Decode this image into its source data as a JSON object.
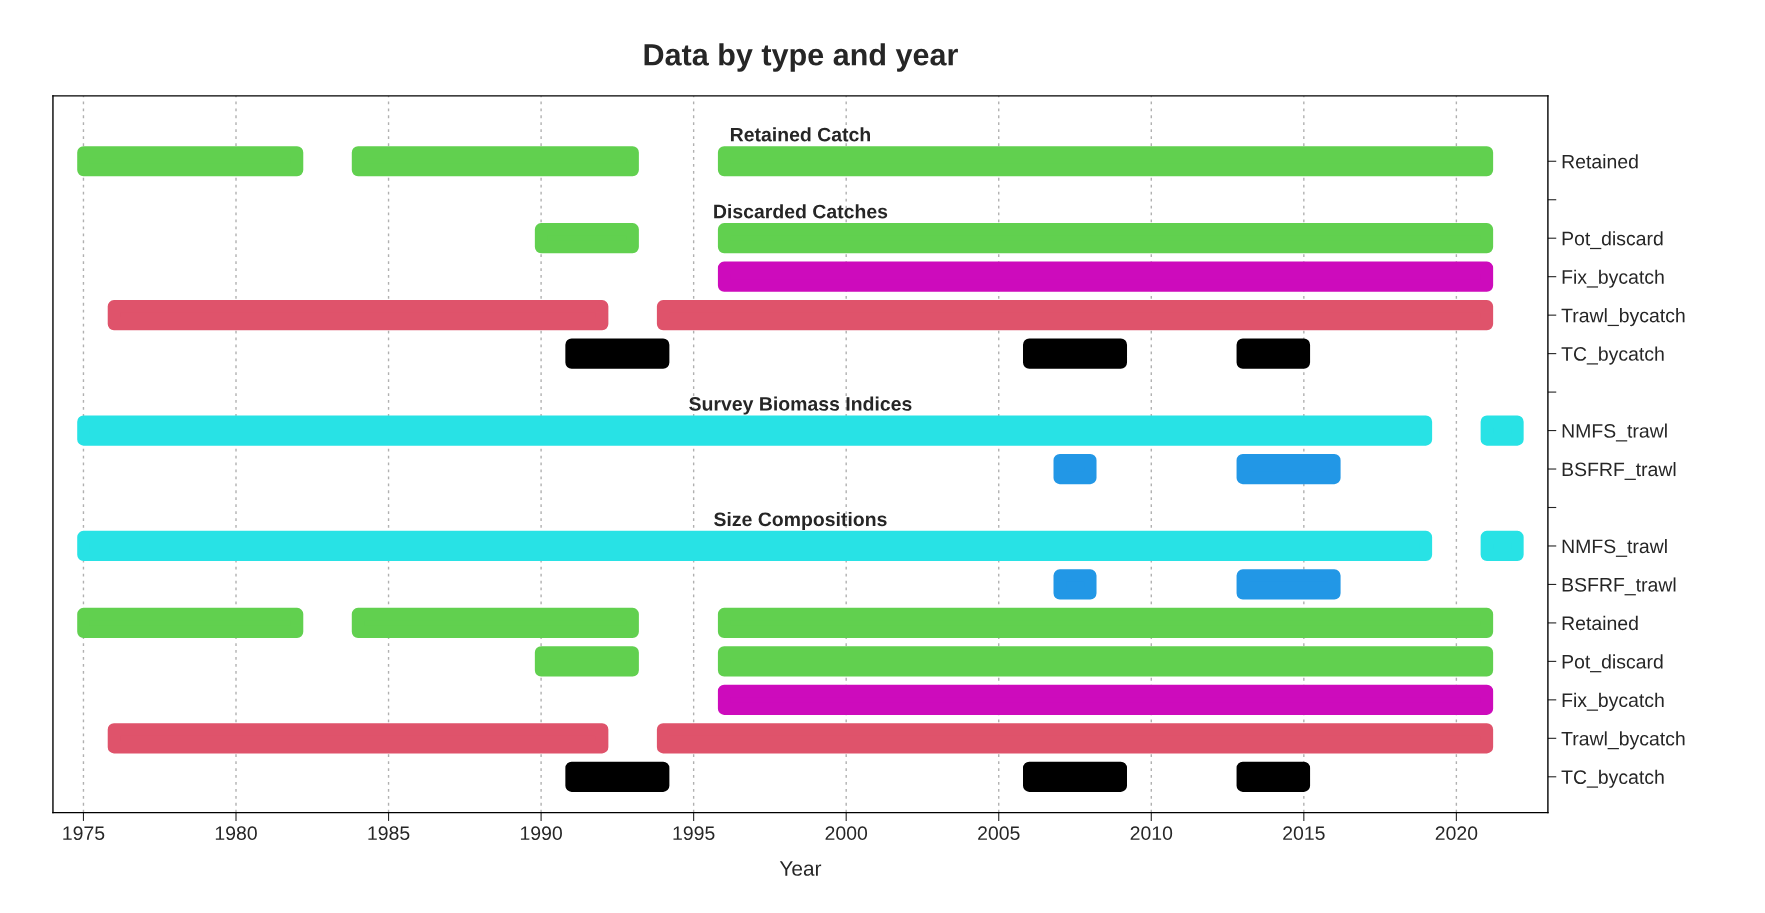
{
  "chart_data": {
    "type": "bar",
    "orientation": "horizontal",
    "title": "Data by type and year",
    "xlabel": "Year",
    "categories": [
      "Retained",
      null,
      "Pot_discard",
      "Fix_bycatch",
      "Trawl_bycatch",
      "TC_bycatch",
      null,
      "NMFS_trawl",
      "BSFRF_trawl",
      null,
      "NMFS_trawl",
      "BSFRF_trawl",
      "Retained",
      "Pot_discard",
      "Fix_bycatch",
      "Trawl_bycatch",
      "TC_bycatch"
    ],
    "series": [
      {
        "values": [
          7,
          null,
          3,
          25,
          16,
          3,
          null,
          44,
          1,
          null,
          44,
          1,
          7,
          3,
          25,
          16,
          3
        ],
        "base": [
          1975,
          null,
          1990,
          1996,
          1976,
          1991,
          null,
          1975,
          2007,
          null,
          1975,
          2007,
          1975,
          1990,
          1996,
          1976,
          1991
        ],
        "colors": [
          "#61d04f",
          null,
          "#61d04f",
          "#cd0bbc",
          "#df536b",
          "#000000",
          null,
          "#28e2e5",
          "#2297e6",
          null,
          "#28e2e5",
          "#2297e6",
          "#61d04f",
          "#61d04f",
          "#cd0bbc",
          "#df536b",
          "#000000"
        ]
      },
      {
        "values": [
          9,
          null,
          25,
          null,
          27,
          3,
          null,
          1,
          3,
          null,
          1,
          3,
          9,
          25,
          null,
          27,
          3
        ],
        "base": [
          1984,
          null,
          1996,
          null,
          1994,
          2006,
          null,
          2021,
          2013,
          null,
          2021,
          2013,
          1984,
          1996,
          null,
          1994,
          2006
        ],
        "colors": [
          "#61d04f",
          null,
          "#61d04f",
          null,
          "#df536b",
          "#000000",
          null,
          "#28e2e5",
          "#2297e6",
          null,
          "#28e2e5",
          "#2297e6",
          "#61d04f",
          "#61d04f",
          null,
          "#df536b",
          "#000000"
        ]
      },
      {
        "values": [
          25,
          null,
          null,
          null,
          null,
          2,
          null,
          null,
          null,
          null,
          null,
          null,
          25,
          null,
          null,
          null,
          2
        ],
        "base": [
          1996,
          null,
          null,
          null,
          null,
          2013,
          null,
          null,
          null,
          null,
          null,
          null,
          1996,
          null,
          null,
          null,
          2013
        ],
        "colors": [
          "#61d04f",
          null,
          null,
          null,
          null,
          "#000000",
          null,
          null,
          null,
          null,
          null,
          null,
          "#61d04f",
          null,
          null,
          null,
          "#000000"
        ]
      }
    ],
    "annotations": [
      "Retained Catch",
      "Discarded Catches",
      "Survey Biomass Indices",
      "Size Compositions"
    ],
    "xlim": [
      1974,
      2023
    ],
    "xticks": [
      1975,
      1980,
      1985,
      1990,
      1995,
      2000,
      2005,
      2010,
      2015,
      2020
    ],
    "grid": "x"
  }
}
